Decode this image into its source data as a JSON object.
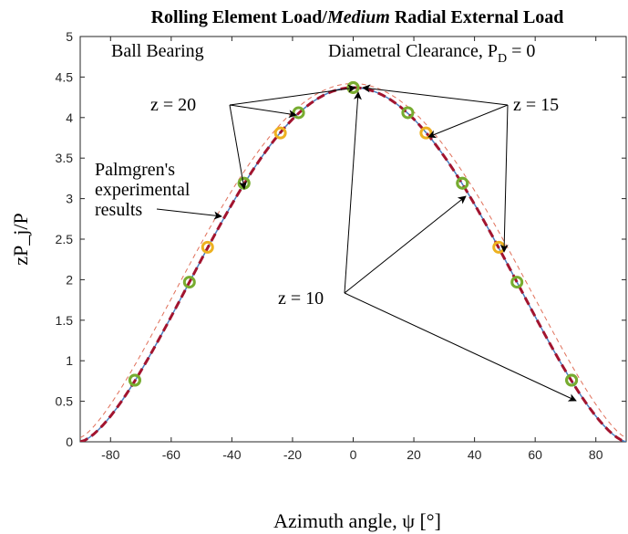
{
  "chart_data": {
    "type": "line",
    "title_prefix": "Rolling Element Load/",
    "title_emph": "Medium",
    "title_suffix": " Radial External Load",
    "xlabel": "Azimuth angle, ψ [°]",
    "ylabel": "zP_j/P",
    "xlim": [
      -90,
      90
    ],
    "ylim": [
      0,
      5
    ],
    "xticks": [
      -80,
      -60,
      -40,
      -20,
      0,
      20,
      40,
      60,
      80
    ],
    "yticks": [
      0,
      0.5,
      1,
      1.5,
      2,
      2.5,
      3,
      3.5,
      4,
      4.5,
      5
    ],
    "ytick_labels": [
      "0",
      "0.5",
      "1",
      "1.5",
      "2",
      "2.5",
      "3",
      "3.5",
      "4",
      "4.5",
      "5"
    ],
    "grid": false,
    "colors": {
      "palmgren_curve": "#a2142f",
      "theory_curve": "#4a7fc0",
      "light_curve": "#e0705a",
      "z10_markers": "#77ac30",
      "z15_markers": "#edb120",
      "z20_markers": "#77ac30"
    },
    "curves": {
      "peak_value": 4.37,
      "amplitude_exponent": 1.5,
      "theory_curve_points": 121
    },
    "series": [
      {
        "name": "z = 10",
        "x": [
          -72,
          -36,
          0,
          36,
          72
        ],
        "y": [
          0.76,
          3.19,
          4.37,
          3.19,
          0.76
        ]
      },
      {
        "name": "z = 15",
        "x": [
          -48,
          -24,
          0,
          24,
          48
        ],
        "y": [
          2.4,
          3.81,
          4.37,
          3.81,
          2.4
        ]
      },
      {
        "name": "z = 20",
        "x": [
          -72,
          -54,
          -36,
          -18,
          0,
          18,
          36,
          54,
          72
        ],
        "y": [
          0.76,
          1.97,
          3.19,
          4.06,
          4.37,
          4.06,
          3.19,
          1.97,
          0.76
        ]
      }
    ],
    "annotations": {
      "ball_bearing": "Ball Bearing",
      "clearance_prefix": "Diametral Clearance, P",
      "clearance_sub": "D",
      "clearance_suffix": " = 0",
      "z20_label": "z = 20",
      "z15_label": "z = 15",
      "z10_label": "z = 10",
      "palmgren_line1": "Palmgren's",
      "palmgren_line2": "experimental",
      "palmgren_line3": "results"
    }
  }
}
